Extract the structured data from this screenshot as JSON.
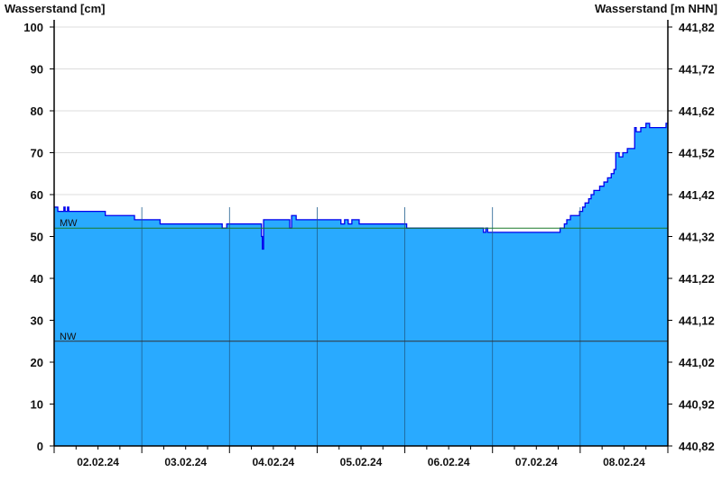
{
  "chart_data": {
    "type": "area",
    "ylabel_left": "Wasserstand [cm]",
    "ylabel_right": "Wasserstand [m NHN]",
    "ylim": [
      0,
      100
    ],
    "yticks": [
      0,
      10,
      20,
      30,
      40,
      50,
      60,
      70,
      80,
      90,
      100
    ],
    "yticks_right": [
      "440,82",
      "440,92",
      "441,02",
      "441,12",
      "441,22",
      "441,32",
      "441,42",
      "441,52",
      "441,62",
      "441,72",
      "441,82"
    ],
    "xlim": [
      "2024-02-02T00:00",
      "2024-02-09T00:00"
    ],
    "xtick_labels": [
      "02.02.24",
      "03.02.24",
      "04.02.24",
      "05.02.24",
      "06.02.24",
      "07.02.24",
      "08.02.24"
    ],
    "grid": true,
    "reference_lines": [
      {
        "label": "MW",
        "value": 52,
        "color": "#1a7a2a"
      },
      {
        "label": "NW",
        "value": 25,
        "color": "#333333"
      }
    ],
    "colors": {
      "fill": "#29aaff",
      "line": "#0000ee",
      "grid": "#dddddd",
      "day_lines": "#1f5f8f"
    },
    "series": [
      {
        "points": [
          [
            "2024-02-02T00:00",
            57
          ],
          [
            "2024-02-02T01:00",
            56
          ],
          [
            "2024-02-02T02:40",
            57
          ],
          [
            "2024-02-02T03:00",
            56
          ],
          [
            "2024-02-02T03:40",
            57
          ],
          [
            "2024-02-02T04:00",
            56
          ],
          [
            "2024-02-02T14:00",
            55
          ],
          [
            "2024-02-02T22:00",
            54
          ],
          [
            "2024-02-03T05:00",
            53
          ],
          [
            "2024-02-03T22:00",
            52
          ],
          [
            "2024-02-03T23:15",
            53
          ],
          [
            "2024-02-04T08:45",
            50
          ],
          [
            "2024-02-04T09:00",
            47
          ],
          [
            "2024-02-04T09:20",
            54
          ],
          [
            "2024-02-04T16:30",
            52
          ],
          [
            "2024-02-04T17:00",
            55
          ],
          [
            "2024-02-04T18:15",
            54
          ],
          [
            "2024-02-05T06:30",
            53
          ],
          [
            "2024-02-05T07:30",
            54
          ],
          [
            "2024-02-05T08:30",
            53
          ],
          [
            "2024-02-05T09:30",
            54
          ],
          [
            "2024-02-05T11:30",
            53
          ],
          [
            "2024-02-06T00:30",
            52
          ],
          [
            "2024-02-06T21:30",
            51
          ],
          [
            "2024-02-06T22:10",
            52
          ],
          [
            "2024-02-06T22:40",
            51
          ],
          [
            "2024-02-07T18:30",
            52
          ],
          [
            "2024-02-07T19:40",
            53
          ],
          [
            "2024-02-07T20:20",
            54
          ],
          [
            "2024-02-07T21:20",
            55
          ],
          [
            "2024-02-07T23:50",
            56
          ],
          [
            "2024-02-08T00:40",
            57
          ],
          [
            "2024-02-08T01:20",
            58
          ],
          [
            "2024-02-08T02:20",
            59
          ],
          [
            "2024-02-08T03:00",
            60
          ],
          [
            "2024-02-08T03:45",
            61
          ],
          [
            "2024-02-08T05:20",
            62
          ],
          [
            "2024-02-08T06:30",
            63
          ],
          [
            "2024-02-08T07:30",
            64
          ],
          [
            "2024-02-08T08:30",
            65
          ],
          [
            "2024-02-08T09:15",
            66
          ],
          [
            "2024-02-08T09:45",
            70
          ],
          [
            "2024-02-08T10:40",
            69
          ],
          [
            "2024-02-08T11:40",
            70
          ],
          [
            "2024-02-08T12:55",
            71
          ],
          [
            "2024-02-08T14:55",
            76
          ],
          [
            "2024-02-08T15:20",
            75
          ],
          [
            "2024-02-08T16:35",
            76
          ],
          [
            "2024-02-08T18:00",
            77
          ],
          [
            "2024-02-08T19:00",
            76
          ],
          [
            "2024-02-08T23:30",
            77
          ]
        ]
      }
    ]
  }
}
